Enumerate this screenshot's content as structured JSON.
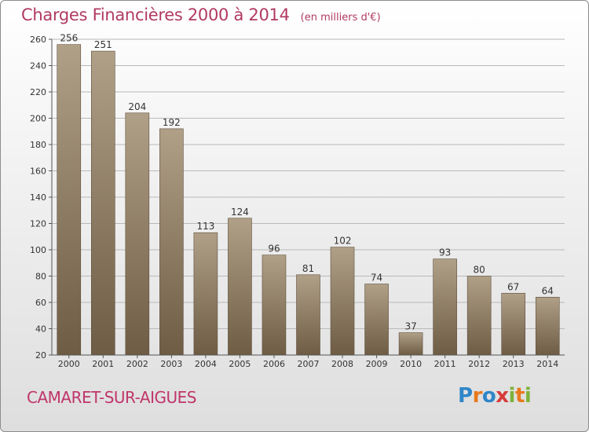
{
  "title": "Charges Financières 2000 à 2014",
  "unit_note": "(en milliers d'€)",
  "commune": "CAMARET-SUR-AIGUES",
  "logo": {
    "text": "Proxiti",
    "colors": [
      "#2f86c8",
      "#e8791d",
      "#7fb23a",
      "#d83a3a"
    ]
  },
  "colors": {
    "title": "#b13a62",
    "bar_top": "#b0a088",
    "bar_bottom": "#6e5c44",
    "grid": "#b9b9b9"
  },
  "chart_data": {
    "type": "bar",
    "title": "Charges Financières 2000 à 2014",
    "subtitle": "(en milliers d'€)",
    "xlabel": "",
    "ylabel": "",
    "categories": [
      "2000",
      "2001",
      "2002",
      "2003",
      "2004",
      "2005",
      "2006",
      "2007",
      "2008",
      "2009",
      "2010",
      "2011",
      "2012",
      "2013",
      "2014"
    ],
    "values": [
      256,
      251,
      204,
      192,
      113,
      124,
      96,
      81,
      102,
      74,
      37,
      93,
      80,
      67,
      64
    ],
    "ylim": [
      20,
      260
    ],
    "yticks": [
      20,
      40,
      60,
      80,
      100,
      120,
      140,
      160,
      180,
      200,
      220,
      240,
      260
    ],
    "grid": true,
    "data_labels": true
  }
}
